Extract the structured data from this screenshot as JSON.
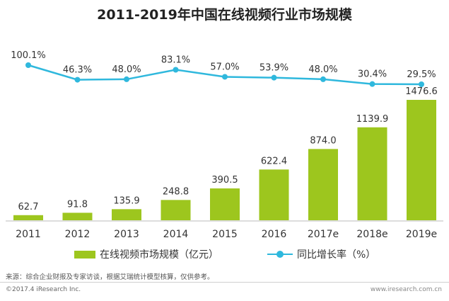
{
  "chart_data": {
    "type": "bar",
    "title": "2011-2019年中国在线视频行业市场规模",
    "categories": [
      "2011",
      "2012",
      "2013",
      "2014",
      "2015",
      "2016",
      "2017e",
      "2018e",
      "2019e"
    ],
    "series": [
      {
        "name": "在线视频市场规模（亿元）",
        "type": "bar",
        "values": [
          62.7,
          91.8,
          135.9,
          248.8,
          390.5,
          622.4,
          874.0,
          1139.9,
          1476.6
        ],
        "labels": [
          "62.7",
          "91.8",
          "135.9",
          "248.8",
          "390.5",
          "622.4",
          "874.0",
          "1139.9",
          "1476.6"
        ]
      },
      {
        "name": "同比增长率（%）",
        "type": "line",
        "values": [
          100.1,
          46.3,
          48.0,
          83.1,
          57.0,
          53.9,
          48.0,
          30.4,
          29.5
        ],
        "labels": [
          "100.1%",
          "46.3%",
          "48.0%",
          "83.1%",
          "57.0%",
          "53.9%",
          "48.0%",
          "30.4%",
          "29.5%"
        ]
      }
    ],
    "legend_position": "bottom",
    "grid": false
  },
  "colors": {
    "bar": "#9dc61e",
    "line": "#2fb8dd"
  },
  "source": "来源：综合企业财报及专家访谈，根据艾瑞统计模型核算，仅供参考。",
  "copyright": "©2017.4 iResearch Inc.",
  "website": "www.iresearch.com.cn"
}
